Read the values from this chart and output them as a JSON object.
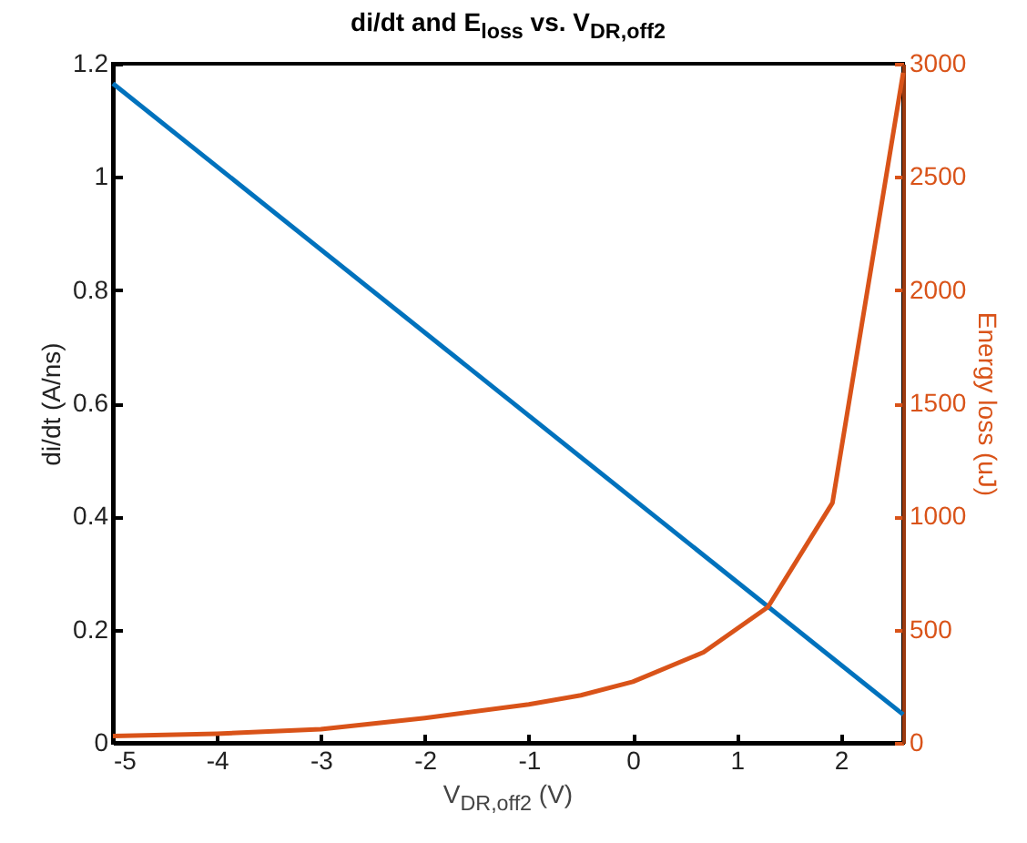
{
  "chart_data": {
    "type": "line",
    "title": "di/dt and E$_{loss}$ vs. V$_{DR,off2}$",
    "xlabel": "V$_{DR,off2}$ (V)",
    "ylabel": "di/dt (A/ns)",
    "y2label": "Energy loss (uJ)",
    "series": [
      {
        "color": "#0072bd",
        "x": [
          -5,
          2.6
        ],
        "values": [
          1.165,
          0.05
        ]
      },
      {
        "color": "#d95319",
        "axis": "y2",
        "x": [
          -5,
          -4,
          -3,
          -2,
          -1,
          -0.5,
          0,
          0.68,
          1.3,
          1.92,
          2.6
        ],
        "values": [
          30,
          40,
          60,
          110,
          170,
          210,
          270,
          400,
          600,
          1060,
          2960
        ]
      }
    ],
    "xlim": [
      -5,
      2.6
    ],
    "xticks": [
      -5,
      -4,
      -3,
      -2,
      -1,
      0,
      1,
      2
    ],
    "ylim": [
      0,
      1.2
    ],
    "yticks": [
      0,
      0.2,
      0.4,
      0.6,
      0.8,
      1,
      1.2
    ],
    "y2lim": [
      0,
      3000
    ],
    "y2ticks": [
      0,
      500,
      1000,
      1500,
      2000,
      2500,
      3000
    ],
    "grid": false
  }
}
